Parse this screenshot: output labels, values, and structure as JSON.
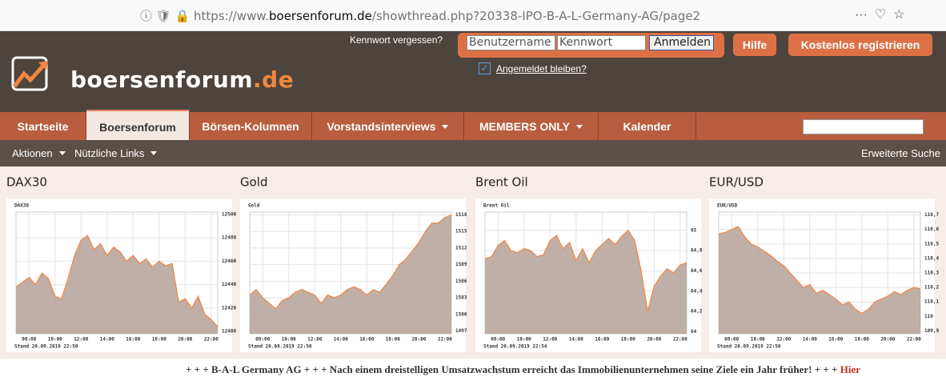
{
  "browser": {
    "url_prefix": "https://www.",
    "url_domain": "boersenforum.de",
    "url_path": "/showthread.php?20338-IPO-B-A-L-Germany-AG/page2"
  },
  "header": {
    "logo_name": "boersenforum",
    "logo_tld": ".de",
    "forgot_password": "Kennwort vergessen?",
    "username": "Benutzername",
    "password": "Kennwort",
    "login": "Anmelden",
    "remember": "Angemeldet bleiben?",
    "help": "Hilfe",
    "register": "Kostenlos registrieren"
  },
  "nav": {
    "tabs": [
      "Startseite",
      "Boersenforum",
      "Börsen-Kolumnen",
      "Vorstandsinterviews",
      "MEMBERS ONLY",
      "Kalender"
    ]
  },
  "subnav": {
    "actions": "Aktionen",
    "links": "Nützliche Links",
    "search": "Erweiterte Suche"
  },
  "ticker": {
    "text": "+ + + B-A-L Germany AG + + + Nach einem dreistelligen Umsatzwachstum erreicht das Immobilienunternehmen seine Ziele ein Jahr früher! + + +",
    "link": "Hier"
  },
  "chart_data": [
    {
      "type": "area",
      "title": "DAX30",
      "footer": "Stand 20.09.2019 22:50",
      "color": "#b8a69c",
      "line_color": "#f08a4b",
      "x": [
        7,
        7.5,
        8,
        8.5,
        9,
        9.5,
        10,
        10.5,
        11,
        11.5,
        12,
        12.5,
        13,
        13.5,
        14,
        14.5,
        15,
        15.5,
        16,
        16.5,
        17,
        17.5,
        18,
        18.5,
        19,
        19.5,
        20,
        20.5,
        21,
        21.5,
        22,
        22.5
      ],
      "values": [
        12438,
        12442,
        12446,
        12440,
        12450,
        12445,
        12430,
        12428,
        12445,
        12465,
        12478,
        12482,
        12470,
        12475,
        12465,
        12472,
        12468,
        12460,
        12465,
        12458,
        12462,
        12455,
        12460,
        12456,
        12458,
        12425,
        12428,
        12420,
        12430,
        12415,
        12410,
        12404
      ],
      "xlim": [
        7,
        22.5
      ],
      "xticks": [
        {
          "value": 8,
          "label": "08:00"
        },
        {
          "value": 10,
          "label": "10:00"
        },
        {
          "value": 12,
          "label": "12:00"
        },
        {
          "value": 14,
          "label": "14:00"
        },
        {
          "value": 16,
          "label": "16:00"
        },
        {
          "value": 18,
          "label": "18:00"
        },
        {
          "value": 20,
          "label": "20:00"
        },
        {
          "value": 22,
          "label": "22:00"
        }
      ],
      "ylim": [
        12398,
        12502
      ],
      "yticks": [
        12400,
        12420,
        12440,
        12460,
        12480,
        12500
      ],
      "grid": true
    },
    {
      "type": "area",
      "title": "Gold",
      "footer": "Stand 20.09.2019 22:50",
      "color": "#b8a69c",
      "line_color": "#f08a4b",
      "x": [
        7,
        7.5,
        8,
        8.5,
        9,
        9.5,
        10,
        10.5,
        11,
        11.5,
        12,
        12.5,
        13,
        13.5,
        14,
        14.5,
        15,
        15.5,
        16,
        16.5,
        17,
        17.5,
        18,
        18.5,
        19,
        19.5,
        20,
        20.5,
        21,
        21.5,
        22,
        22.5
      ],
      "values": [
        1503.5,
        1504.5,
        1503,
        1502,
        1501,
        1502.5,
        1503,
        1504,
        1504.5,
        1504,
        1503.5,
        1502,
        1503.5,
        1503,
        1503.5,
        1504.5,
        1505,
        1504.5,
        1503.5,
        1504.5,
        1504,
        1505.5,
        1507,
        1509,
        1510,
        1511.5,
        1513,
        1515,
        1516.5,
        1516.5,
        1517.5,
        1518
      ],
      "xlim": [
        7,
        22.5
      ],
      "xticks": [
        {
          "value": 8,
          "label": "08:00"
        },
        {
          "value": 10,
          "label": "10:00"
        },
        {
          "value": 12,
          "label": "12:00"
        },
        {
          "value": 14,
          "label": "14:00"
        },
        {
          "value": 16,
          "label": "16:00"
        },
        {
          "value": 18,
          "label": "18:00"
        },
        {
          "value": 20,
          "label": "20:00"
        },
        {
          "value": 22,
          "label": "22:00"
        }
      ],
      "ylim": [
        1496.5,
        1518.5
      ],
      "yticks": [
        1497,
        1500,
        1503,
        1506,
        1509,
        1512,
        1515,
        1518
      ],
      "grid": true
    },
    {
      "type": "area",
      "title": "Brent Oil",
      "footer": "Stand 20.09.2019 22:54",
      "color": "#b8a69c",
      "line_color": "#f08a4b",
      "x": [
        7,
        7.5,
        8,
        8.5,
        9,
        9.5,
        10,
        10.5,
        11,
        11.5,
        12,
        12.5,
        13,
        13.5,
        14,
        14.5,
        15,
        15.5,
        16,
        16.5,
        17,
        17.5,
        18,
        18.5,
        19,
        19.5,
        20,
        20.5,
        21,
        21.5,
        22,
        22.5
      ],
      "values": [
        64.72,
        64.74,
        64.85,
        64.9,
        64.8,
        64.78,
        64.82,
        64.8,
        64.74,
        64.76,
        64.9,
        64.95,
        64.82,
        64.88,
        64.7,
        64.82,
        64.68,
        64.8,
        64.86,
        64.92,
        64.86,
        64.94,
        65.0,
        64.9,
        64.6,
        64.2,
        64.45,
        64.55,
        64.62,
        64.58,
        64.66,
        64.68
      ],
      "xlim": [
        7,
        22.5
      ],
      "xticks": [
        {
          "value": 8,
          "label": "08:00"
        },
        {
          "value": 10,
          "label": "10:00"
        },
        {
          "value": 12,
          "label": "12:00"
        },
        {
          "value": 14,
          "label": "14:00"
        },
        {
          "value": 16,
          "label": "16:00"
        },
        {
          "value": 18,
          "label": "18:00"
        },
        {
          "value": 20,
          "label": "20:00"
        },
        {
          "value": 22,
          "label": "22:00"
        }
      ],
      "ylim": [
        63.98,
        65.18
      ],
      "yticks": [
        64,
        {
          "value": 64.2,
          "label": "64,2"
        },
        {
          "value": 64.4,
          "label": "64,4"
        },
        {
          "value": 64.6,
          "label": "64,6"
        },
        {
          "value": 64.8,
          "label": "64,8"
        },
        65
      ],
      "grid": true
    },
    {
      "type": "area",
      "title": "EUR/USD",
      "footer": "Stand 20.09.2019 22:50",
      "color": "#b8a69c",
      "line_color": "#f08a4b",
      "x": [
        7,
        7.5,
        8,
        8.5,
        9,
        9.5,
        10,
        10.5,
        11,
        11.5,
        12,
        12.5,
        13,
        13.5,
        14,
        14.5,
        15,
        15.5,
        16,
        16.5,
        17,
        17.5,
        18,
        18.5,
        19,
        19.5,
        20,
        20.5,
        21,
        21.5,
        22,
        22.5
      ],
      "values": [
        110.57,
        110.58,
        110.6,
        110.62,
        110.55,
        110.5,
        110.48,
        110.45,
        110.42,
        110.38,
        110.35,
        110.3,
        110.25,
        110.2,
        110.22,
        110.16,
        110.18,
        110.15,
        110.12,
        110.08,
        110.1,
        110.05,
        110.02,
        110.05,
        110.1,
        110.12,
        110.14,
        110.17,
        110.15,
        110.18,
        110.2,
        110.19
      ],
      "xlim": [
        7,
        22.5
      ],
      "xticks": [
        {
          "value": 8,
          "label": "08:00"
        },
        {
          "value": 10,
          "label": "10:00"
        },
        {
          "value": 12,
          "label": "12:00"
        },
        {
          "value": 14,
          "label": "14:00"
        },
        {
          "value": 16,
          "label": "16:00"
        },
        {
          "value": 18,
          "label": "18:00"
        },
        {
          "value": 20,
          "label": "20:00"
        },
        {
          "value": 22,
          "label": "22:00"
        }
      ],
      "ylim": [
        109.88,
        110.72
      ],
      "yticks": [
        {
          "value": 109.9,
          "label": "109,9"
        },
        110,
        {
          "value": 110.1,
          "label": "110,1"
        },
        {
          "value": 110.2,
          "label": "110,2"
        },
        {
          "value": 110.3,
          "label": "110,3"
        },
        {
          "value": 110.4,
          "label": "110,4"
        },
        {
          "value": 110.5,
          "label": "110,5"
        },
        {
          "value": 110.6,
          "label": "110,6"
        },
        {
          "value": 110.7,
          "label": "110,7"
        }
      ],
      "grid": true
    }
  ]
}
